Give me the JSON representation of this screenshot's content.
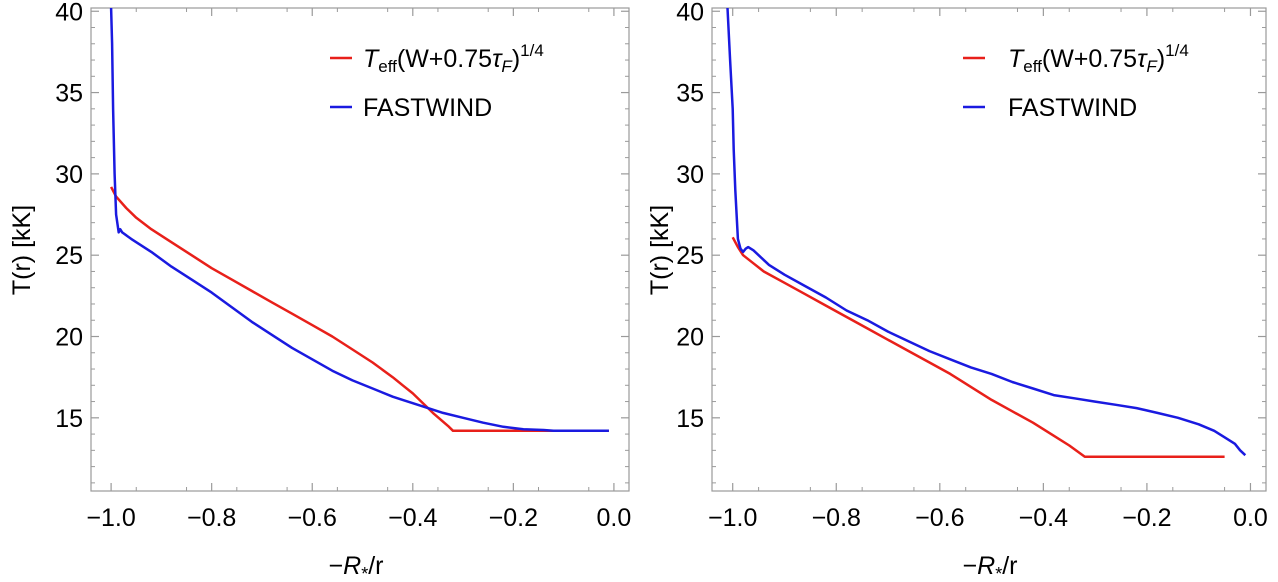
{
  "chart_data": [
    {
      "type": "line",
      "xlabel": "−R*/r",
      "ylabel": "T(r) [kK]",
      "xlim": [
        -1.04,
        0.03
      ],
      "ylim": [
        10.5,
        40.2
      ],
      "x_ticks": [
        -1.0,
        -0.8,
        -0.6,
        -0.4,
        -0.2,
        0.0
      ],
      "x_tick_labels": [
        "−1.0",
        "−0.8",
        "−0.6",
        "−0.4",
        "−0.2",
        "0.0"
      ],
      "y_ticks": [
        15,
        20,
        25,
        30,
        35,
        40
      ],
      "y_tick_labels": [
        "15",
        "20",
        "25",
        "30",
        "35",
        "40"
      ],
      "grid": false,
      "legend_position": "top-right",
      "series": [
        {
          "name": "Teff(W+0.75τF)1/4",
          "color": "#e8201a",
          "x": [
            -1.0,
            -0.99,
            -0.97,
            -0.95,
            -0.92,
            -0.88,
            -0.84,
            -0.8,
            -0.76,
            -0.72,
            -0.68,
            -0.64,
            -0.6,
            -0.56,
            -0.52,
            -0.48,
            -0.44,
            -0.42,
            -0.4,
            -0.36,
            -0.33,
            -0.32,
            -0.2,
            -0.1,
            -0.01
          ],
          "y": [
            29.2,
            28.6,
            27.9,
            27.3,
            26.6,
            25.8,
            25.0,
            24.2,
            23.5,
            22.8,
            22.1,
            21.4,
            20.7,
            20.0,
            19.2,
            18.4,
            17.5,
            17.0,
            16.5,
            15.3,
            14.5,
            14.2,
            14.2,
            14.2,
            14.2
          ]
        },
        {
          "name": "FASTWIND",
          "color": "#1a1ae0",
          "x": [
            -1.0,
            -0.998,
            -0.996,
            -0.993,
            -0.99,
            -0.985,
            -0.982,
            -0.978,
            -0.96,
            -0.92,
            -0.88,
            -0.84,
            -0.8,
            -0.76,
            -0.72,
            -0.68,
            -0.64,
            -0.6,
            -0.56,
            -0.52,
            -0.48,
            -0.44,
            -0.42,
            -0.38,
            -0.34,
            -0.3,
            -0.26,
            -0.22,
            -0.18,
            -0.14,
            -0.12,
            -0.08,
            -0.04,
            -0.01
          ],
          "y": [
            40.2,
            38.0,
            34.0,
            30.0,
            27.5,
            26.4,
            26.6,
            26.4,
            26.0,
            25.2,
            24.3,
            23.5,
            22.7,
            21.8,
            20.9,
            20.1,
            19.3,
            18.6,
            17.9,
            17.3,
            16.8,
            16.3,
            16.1,
            15.7,
            15.3,
            15.0,
            14.7,
            14.45,
            14.3,
            14.25,
            14.2,
            14.2,
            14.2,
            14.2
          ]
        }
      ]
    },
    {
      "type": "line",
      "xlabel": "−R*/r",
      "ylabel": "T(r) [kK]",
      "xlim": [
        -1.04,
        0.03
      ],
      "ylim": [
        10.5,
        40.2
      ],
      "x_ticks": [
        -1.0,
        -0.8,
        -0.6,
        -0.4,
        -0.2,
        0.0
      ],
      "x_tick_labels": [
        "−1.0",
        "−0.8",
        "−0.6",
        "−0.4",
        "−0.2",
        "0.0"
      ],
      "y_ticks": [
        15,
        20,
        25,
        30,
        35,
        40
      ],
      "y_tick_labels": [
        "15",
        "20",
        "25",
        "30",
        "35",
        "40"
      ],
      "grid": false,
      "legend_position": "top-right",
      "series": [
        {
          "name": "Teff(W+0.75τF)1/4",
          "color": "#e8201a",
          "x": [
            -1.0,
            -0.99,
            -0.98,
            -0.96,
            -0.94,
            -0.9,
            -0.86,
            -0.82,
            -0.78,
            -0.74,
            -0.7,
            -0.66,
            -0.62,
            -0.58,
            -0.54,
            -0.5,
            -0.46,
            -0.42,
            -0.38,
            -0.35,
            -0.32,
            -0.2,
            -0.1,
            -0.05
          ],
          "y": [
            26.1,
            25.5,
            25.0,
            24.5,
            24.0,
            23.3,
            22.6,
            21.9,
            21.2,
            20.5,
            19.8,
            19.1,
            18.4,
            17.7,
            16.9,
            16.1,
            15.4,
            14.7,
            13.9,
            13.3,
            12.6,
            12.6,
            12.6,
            12.6
          ]
        },
        {
          "name": "FASTWIND",
          "color": "#1a1ae0",
          "x": [
            -1.01,
            -1.005,
            -1.0,
            -0.998,
            -0.995,
            -0.99,
            -0.985,
            -0.98,
            -0.975,
            -0.97,
            -0.96,
            -0.95,
            -0.93,
            -0.9,
            -0.86,
            -0.82,
            -0.78,
            -0.74,
            -0.7,
            -0.66,
            -0.62,
            -0.58,
            -0.54,
            -0.5,
            -0.46,
            -0.42,
            -0.38,
            -0.34,
            -0.3,
            -0.26,
            -0.22,
            -0.18,
            -0.14,
            -0.1,
            -0.07,
            -0.05,
            -0.03,
            -0.02,
            -0.01
          ],
          "y": [
            40.2,
            37.0,
            34.0,
            31.5,
            29.0,
            26.0,
            25.4,
            25.2,
            25.4,
            25.5,
            25.3,
            25.0,
            24.4,
            23.8,
            23.1,
            22.4,
            21.6,
            21.0,
            20.3,
            19.7,
            19.1,
            18.6,
            18.1,
            17.7,
            17.2,
            16.8,
            16.4,
            16.2,
            16.0,
            15.8,
            15.6,
            15.3,
            15.0,
            14.6,
            14.2,
            13.8,
            13.4,
            13.0,
            12.7
          ]
        }
      ]
    }
  ],
  "legend": {
    "series1_base": "T",
    "series1_sub": "eff",
    "series1_mid": "(W+0.75",
    "series1_tau": "τ",
    "series1_tau_sub": "F",
    "series1_close": ")",
    "series1_sup": "1/4",
    "series2": "FASTWIND"
  },
  "axes_text": {
    "xlabel_minus": "−",
    "xlabel_R": "R",
    "xlabel_star": "*",
    "xlabel_rest": "/r",
    "ylabel": "T(r) [kK]"
  }
}
